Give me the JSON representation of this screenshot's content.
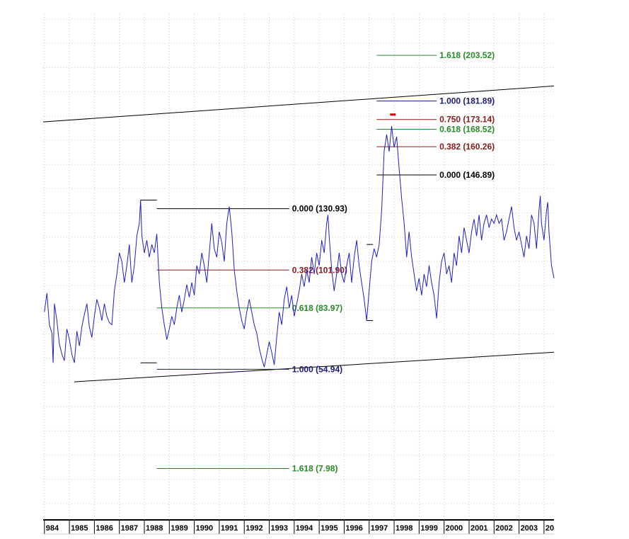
{
  "chart_data": {
    "type": "line",
    "title": "",
    "xlabel": "",
    "ylabel": "",
    "x_range": [
      1983.95,
      2004.4
    ],
    "y_range": [
      -15,
      223
    ],
    "grid": true,
    "x_tick_labels": [
      "984",
      "1985",
      "1986",
      "1987",
      "1988",
      "1989",
      "1990",
      "1991",
      "1992",
      "1993",
      "1994",
      "1995",
      "1996",
      "1997",
      "1998",
      "1999",
      "2000",
      "2001",
      "2002",
      "2003",
      "20"
    ],
    "colors": {
      "series": "#1f1fc8",
      "trendline": "#000000",
      "fib_0": "#000000",
      "fib_0382": "#8b1a1a",
      "fib_0618": "#2a8a2a",
      "fib_0750": "#8b1a1a",
      "fib_1": "#1a1a7a",
      "fib_1618": "#2a8a2a",
      "marker": "#dd0000",
      "grid": "#c8c8c8"
    },
    "series": [
      {
        "values": [
          [
            1984.0,
            82
          ],
          [
            1984.1,
            91
          ],
          [
            1984.2,
            76
          ],
          [
            1984.3,
            72
          ],
          [
            1984.35,
            58
          ],
          [
            1984.4,
            86
          ],
          [
            1984.5,
            78
          ],
          [
            1984.6,
            67
          ],
          [
            1984.7,
            62
          ],
          [
            1984.8,
            59
          ],
          [
            1984.9,
            74
          ],
          [
            1985.0,
            69
          ],
          [
            1985.1,
            62
          ],
          [
            1985.2,
            58
          ],
          [
            1985.3,
            73
          ],
          [
            1985.4,
            66
          ],
          [
            1985.5,
            75
          ],
          [
            1985.6,
            81
          ],
          [
            1985.7,
            86
          ],
          [
            1985.8,
            75
          ],
          [
            1985.9,
            70
          ],
          [
            1986.0,
            80
          ],
          [
            1986.1,
            88
          ],
          [
            1986.2,
            84
          ],
          [
            1986.3,
            78
          ],
          [
            1986.4,
            86
          ],
          [
            1986.5,
            80
          ],
          [
            1986.6,
            77
          ],
          [
            1986.7,
            76
          ],
          [
            1986.8,
            92
          ],
          [
            1986.9,
            100
          ],
          [
            1987.0,
            110
          ],
          [
            1987.1,
            106
          ],
          [
            1987.2,
            96
          ],
          [
            1987.3,
            104
          ],
          [
            1987.4,
            114
          ],
          [
            1987.5,
            96
          ],
          [
            1987.6,
            104
          ],
          [
            1987.7,
            118
          ],
          [
            1987.8,
            124
          ],
          [
            1987.85,
            135
          ],
          [
            1987.9,
            118
          ],
          [
            1988.0,
            110
          ],
          [
            1988.1,
            116
          ],
          [
            1988.2,
            108
          ],
          [
            1988.3,
            114
          ],
          [
            1988.4,
            110
          ],
          [
            1988.5,
            119
          ],
          [
            1988.6,
            96
          ],
          [
            1988.7,
            84
          ],
          [
            1988.8,
            76
          ],
          [
            1988.9,
            69
          ],
          [
            1989.0,
            74
          ],
          [
            1989.1,
            80
          ],
          [
            1989.2,
            76
          ],
          [
            1989.3,
            84
          ],
          [
            1989.4,
            90
          ],
          [
            1989.5,
            82
          ],
          [
            1989.6,
            88
          ],
          [
            1989.7,
            95
          ],
          [
            1989.8,
            89
          ],
          [
            1989.9,
            96
          ],
          [
            1990.0,
            90
          ],
          [
            1990.1,
            104
          ],
          [
            1990.2,
            100
          ],
          [
            1990.3,
            110
          ],
          [
            1990.4,
            104
          ],
          [
            1990.5,
            96
          ],
          [
            1990.6,
            110
          ],
          [
            1990.7,
            124
          ],
          [
            1990.8,
            112
          ],
          [
            1990.9,
            108
          ],
          [
            1991.0,
            120
          ],
          [
            1991.1,
            115
          ],
          [
            1991.2,
            106
          ],
          [
            1991.3,
            124
          ],
          [
            1991.4,
            132
          ],
          [
            1991.5,
            120
          ],
          [
            1991.6,
            102
          ],
          [
            1991.7,
            92
          ],
          [
            1991.8,
            84
          ],
          [
            1991.9,
            78
          ],
          [
            1992.0,
            74
          ],
          [
            1992.1,
            82
          ],
          [
            1992.2,
            88
          ],
          [
            1992.3,
            82
          ],
          [
            1992.4,
            76
          ],
          [
            1992.5,
            72
          ],
          [
            1992.6,
            65
          ],
          [
            1992.7,
            60
          ],
          [
            1992.8,
            56
          ],
          [
            1992.9,
            62
          ],
          [
            1993.0,
            68
          ],
          [
            1993.1,
            63
          ],
          [
            1993.2,
            57
          ],
          [
            1993.3,
            70
          ],
          [
            1993.4,
            82
          ],
          [
            1993.5,
            76
          ],
          [
            1993.6,
            88
          ],
          [
            1993.7,
            94
          ],
          [
            1993.8,
            84
          ],
          [
            1993.9,
            90
          ],
          [
            1994.0,
            80
          ],
          [
            1994.1,
            86
          ],
          [
            1994.2,
            92
          ],
          [
            1994.3,
            100
          ],
          [
            1994.4,
            94
          ],
          [
            1994.5,
            102
          ],
          [
            1994.6,
            96
          ],
          [
            1994.7,
            108
          ],
          [
            1994.8,
            100
          ],
          [
            1994.9,
            110
          ],
          [
            1995.0,
            104
          ],
          [
            1995.1,
            116
          ],
          [
            1995.2,
            110
          ],
          [
            1995.3,
            124
          ],
          [
            1995.35,
            128
          ],
          [
            1995.4,
            118
          ],
          [
            1995.5,
            102
          ],
          [
            1995.6,
            92
          ],
          [
            1995.7,
            100
          ],
          [
            1995.8,
            110
          ],
          [
            1995.9,
            100
          ],
          [
            1996.0,
            96
          ],
          [
            1996.1,
            104
          ],
          [
            1996.2,
            110
          ],
          [
            1996.3,
            96
          ],
          [
            1996.4,
            108
          ],
          [
            1996.5,
            116
          ],
          [
            1996.6,
            104
          ],
          [
            1996.7,
            96
          ],
          [
            1996.8,
            88
          ],
          [
            1996.9,
            78
          ],
          [
            1997.0,
            92
          ],
          [
            1997.1,
            106
          ],
          [
            1997.2,
            112
          ],
          [
            1997.3,
            108
          ],
          [
            1997.4,
            114
          ],
          [
            1997.5,
            130
          ],
          [
            1997.6,
            158
          ],
          [
            1997.7,
            166
          ],
          [
            1997.8,
            158
          ],
          [
            1997.9,
            170
          ],
          [
            1998.0,
            160
          ],
          [
            1998.1,
            165
          ],
          [
            1998.2,
            150
          ],
          [
            1998.3,
            136
          ],
          [
            1998.4,
            124
          ],
          [
            1998.5,
            108
          ],
          [
            1998.6,
            120
          ],
          [
            1998.7,
            108
          ],
          [
            1998.8,
            100
          ],
          [
            1998.9,
            92
          ],
          [
            1999.0,
            98
          ],
          [
            1999.1,
            90
          ],
          [
            1999.2,
            100
          ],
          [
            1999.3,
            94
          ],
          [
            1999.4,
            104
          ],
          [
            1999.5,
            96
          ],
          [
            1999.6,
            90
          ],
          [
            1999.7,
            79
          ],
          [
            1999.8,
            96
          ],
          [
            1999.9,
            106
          ],
          [
            2000.0,
            110
          ],
          [
            2000.1,
            100
          ],
          [
            2000.2,
            104
          ],
          [
            2000.3,
            96
          ],
          [
            2000.4,
            110
          ],
          [
            2000.5,
            104
          ],
          [
            2000.6,
            118
          ],
          [
            2000.7,
            110
          ],
          [
            2000.8,
            122
          ],
          [
            2000.9,
            116
          ],
          [
            2001.0,
            110
          ],
          [
            2001.1,
            120
          ],
          [
            2001.2,
            126
          ],
          [
            2001.3,
            118
          ],
          [
            2001.4,
            128
          ],
          [
            2001.5,
            116
          ],
          [
            2001.6,
            124
          ],
          [
            2001.7,
            128
          ],
          [
            2001.8,
            122
          ],
          [
            2001.9,
            126
          ],
          [
            2002.0,
            124
          ],
          [
            2002.1,
            128
          ],
          [
            2002.2,
            124
          ],
          [
            2002.3,
            126
          ],
          [
            2002.4,
            116
          ],
          [
            2002.5,
            120
          ],
          [
            2002.6,
            126
          ],
          [
            2002.7,
            132
          ],
          [
            2002.8,
            122
          ],
          [
            2002.9,
            116
          ],
          [
            2003.0,
            120
          ],
          [
            2003.1,
            114
          ],
          [
            2003.2,
            108
          ],
          [
            2003.3,
            118
          ],
          [
            2003.4,
            112
          ],
          [
            2003.5,
            128
          ],
          [
            2003.6,
            124
          ],
          [
            2003.7,
            112
          ],
          [
            2003.8,
            130
          ],
          [
            2003.85,
            137
          ],
          [
            2003.9,
            124
          ],
          [
            2004.0,
            116
          ],
          [
            2004.1,
            130
          ],
          [
            2004.15,
            134
          ],
          [
            2004.2,
            120
          ],
          [
            2004.3,
            104
          ],
          [
            2004.4,
            98
          ]
        ]
      }
    ],
    "trendlines": [
      {
        "x1": 1983.95,
        "y1": 172,
        "x2": 2004.4,
        "y2": 189
      },
      {
        "x1": 1985.2,
        "y1": 49,
        "x2": 2004.4,
        "y2": 63
      }
    ],
    "fib_sets": [
      {
        "x_start": 1988.5,
        "x_end": 1993.8,
        "levels": [
          {
            "ratio": "0.000",
            "value": 130.93,
            "label": "0.000 (130.93)",
            "color_key": "fib_0"
          },
          {
            "ratio": "0.382",
            "value": 101.9,
            "label": "0.382 (101.90)",
            "color_key": "fib_0382"
          },
          {
            "ratio": "0.618",
            "value": 83.97,
            "label": "0.618 (83.97)",
            "color_key": "fib_0618"
          },
          {
            "ratio": "1.000",
            "value": 54.94,
            "label": "1.000 (54.94)",
            "color_key": "fib_1"
          },
          {
            "ratio": "1.618",
            "value": 7.98,
            "label": "1.618 (7.98)",
            "color_key": "fib_1618"
          }
        ]
      },
      {
        "x_start": 1997.3,
        "x_end": 1999.7,
        "levels": [
          {
            "ratio": "1.618",
            "value": 203.52,
            "label": "1.618 (203.52)",
            "color_key": "fib_1618"
          },
          {
            "ratio": "1.000",
            "value": 181.89,
            "label": "1.000 (181.89)",
            "color_key": "fib_1"
          },
          {
            "ratio": "0.750",
            "value": 173.14,
            "label": "0.750 (173.14)",
            "color_key": "fib_0750"
          },
          {
            "ratio": "0.618",
            "value": 168.52,
            "label": "0.618 (168.52)",
            "color_key": "fib_0618"
          },
          {
            "ratio": "0.382",
            "value": 160.26,
            "label": "0.382 (160.26)",
            "color_key": "fib_0382"
          },
          {
            "ratio": "0.000",
            "value": 146.89,
            "label": "0.000 (146.89)",
            "color_key": "fib_0"
          }
        ]
      }
    ],
    "range_markers": [
      {
        "x1": 1987.85,
        "x2": 1988.5,
        "value": 135
      },
      {
        "x1": 1987.85,
        "x2": 1988.5,
        "value": 58
      },
      {
        "x1": 1996.9,
        "x2": 1997.15,
        "value": 78
      },
      {
        "x1": 1996.9,
        "x2": 1997.15,
        "value": 114
      }
    ],
    "peak_marker": {
      "x": 1997.95,
      "value": 175.5
    }
  }
}
